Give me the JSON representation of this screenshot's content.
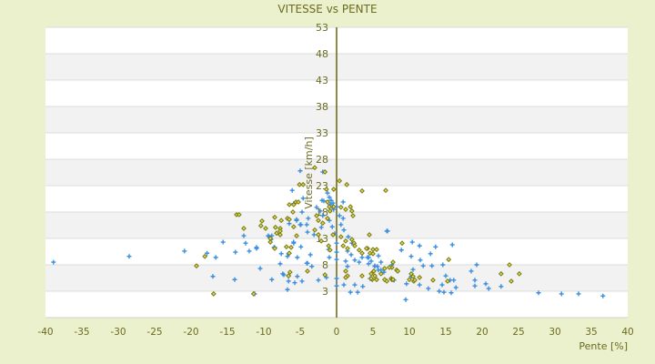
{
  "chart_data": {
    "type": "scatter",
    "title": "VITESSE vs PENTE",
    "xlabel": "Pente [%]",
    "ylabel": "Vitesse [km/h]",
    "xlim": [
      -40,
      40
    ],
    "ylim": [
      -2,
      53
    ],
    "xticks": [
      -40,
      -35,
      -30,
      -25,
      -20,
      -15,
      -10,
      -5,
      0,
      5,
      10,
      15,
      20,
      25,
      30,
      35,
      40
    ],
    "yticks": [
      3,
      8,
      13,
      18,
      23,
      28,
      33,
      38,
      43,
      48,
      53
    ],
    "grid": true,
    "colors": {
      "series_blue": "#3a8ee0",
      "series_olive": "#7a7a10",
      "zero_line": "#66660a",
      "band": "#f2f2f2"
    },
    "series": [
      {
        "name": "series-blue",
        "marker": "plus",
        "points": [
          [
            -38.9,
            8.5
          ],
          [
            -28.5,
            9.6
          ],
          [
            -20.9,
            10.6
          ],
          [
            -17.8,
            10.2
          ],
          [
            -16.6,
            9.4
          ],
          [
            -15.6,
            12.3
          ],
          [
            -17,
            5.8
          ],
          [
            -16.9,
            2.5
          ],
          [
            -14,
            5.2
          ],
          [
            -13.9,
            10.4
          ],
          [
            -12.75,
            13.5
          ],
          [
            -12.5,
            12.1
          ],
          [
            -12,
            10.6
          ],
          [
            -11,
            11.1
          ],
          [
            -11.4,
            2.5
          ],
          [
            -10.5,
            7.3
          ],
          [
            -8.9,
            5.2
          ],
          [
            -9.4,
            13.5
          ],
          [
            -8.9,
            13.5
          ],
          [
            -8.6,
            11.3
          ],
          [
            -7.6,
            10.1
          ],
          [
            -7.75,
            8.2
          ],
          [
            -7.4,
            6.3
          ],
          [
            -6.75,
            9.6
          ],
          [
            -6.6,
            5.9
          ],
          [
            -6.6,
            4.9
          ],
          [
            -5.75,
            4.6
          ],
          [
            -6.75,
            3.3
          ],
          [
            -5.4,
            5.8
          ],
          [
            -4.75,
            4.9
          ],
          [
            -4.9,
            11.4
          ],
          [
            -4.1,
            8.3
          ],
          [
            -5.9,
            12.3
          ],
          [
            -6.5,
            15.8
          ],
          [
            -5.5,
            16.6
          ],
          [
            -5,
            15.6
          ],
          [
            -4.1,
            15.6
          ],
          [
            -4.75,
            18
          ],
          [
            -5.9,
            19.6
          ],
          [
            6.9,
            14.4
          ],
          [
            10.4,
            12.3
          ],
          [
            11.4,
            11.6
          ],
          [
            13.6,
            11.4
          ],
          [
            15.9,
            11.8
          ],
          [
            8.9,
            10.8
          ],
          [
            12.9,
            10.1
          ],
          [
            10.25,
            9.6
          ],
          [
            11.5,
            8.9
          ],
          [
            11.9,
            7.8
          ],
          [
            13.1,
            7.8
          ],
          [
            14.6,
            8
          ],
          [
            19.25,
            8
          ],
          [
            18.5,
            6.8
          ],
          [
            10.5,
            7.1
          ],
          [
            15,
            5.9
          ],
          [
            10.25,
            5.8
          ],
          [
            9.6,
            4.4
          ],
          [
            11.4,
            4.2
          ],
          [
            14.5,
            4.2
          ],
          [
            15.6,
            5.1
          ],
          [
            16.1,
            5.1
          ],
          [
            16.4,
            3.7
          ],
          [
            12.6,
            3.5
          ],
          [
            14.1,
            3
          ],
          [
            14.75,
            2.8
          ],
          [
            15.75,
            2.7
          ],
          [
            19,
            5.1
          ],
          [
            19,
            4
          ],
          [
            20.5,
            4.4
          ],
          [
            20.9,
            3.5
          ],
          [
            22.6,
            3.9
          ],
          [
            9.5,
            1.4
          ],
          [
            27.75,
            2.7
          ],
          [
            30.9,
            2.5
          ],
          [
            33.25,
            2.5
          ],
          [
            36.6,
            2.1
          ],
          [
            4.4,
            8.2
          ],
          [
            5.25,
            7.7
          ],
          [
            5.6,
            7.7
          ],
          [
            5.75,
            9.7
          ],
          [
            6.1,
            8.5
          ],
          [
            5.75,
            7
          ],
          [
            6.1,
            7
          ],
          [
            6.5,
            6.6
          ],
          [
            4.6,
            5.4
          ],
          [
            7.9,
            5.1
          ],
          [
            7.6,
            8
          ],
          [
            4.4,
            9.4
          ],
          [
            -5,
            25.8
          ],
          [
            -1.9,
            25.6
          ],
          [
            -6.1,
            22.1
          ],
          [
            -4.6,
            20.6
          ],
          [
            -1.25,
            21.6
          ],
          [
            -1,
            20.8
          ],
          [
            -0.75,
            20.2
          ],
          [
            -0.5,
            19.7
          ],
          [
            -0.9,
            19.4
          ],
          [
            -0.6,
            18.9
          ],
          [
            -0.4,
            18.5
          ],
          [
            0,
            19
          ],
          [
            -2,
            20.2
          ],
          [
            -1.75,
            20.1
          ],
          [
            0.9,
            19.9
          ],
          [
            -2.75,
            18.9
          ],
          [
            -2.25,
            18.2
          ],
          [
            -1.9,
            17.3
          ],
          [
            0.4,
            17.3
          ],
          [
            0.9,
            16.8
          ],
          [
            0.6,
            15.6
          ],
          [
            -1,
            16.4
          ],
          [
            -0.6,
            15.2
          ],
          [
            -0.25,
            13.9
          ],
          [
            -3.9,
            16.8
          ],
          [
            -4.9,
            15.6
          ],
          [
            -5.5,
            16.4
          ],
          [
            -4,
            14.2
          ],
          [
            -3.1,
            13.7
          ],
          [
            -2.1,
            15.1
          ],
          [
            1,
            14.6
          ],
          [
            1.6,
            13.3
          ],
          [
            2.1,
            12.1
          ],
          [
            -9.25,
            13.3
          ],
          [
            -9,
            12.8
          ],
          [
            -8.5,
            11.3
          ],
          [
            -5.9,
            12.1
          ],
          [
            0,
            12.1
          ],
          [
            0,
            10.4
          ],
          [
            0,
            9
          ],
          [
            -1.1,
            10.9
          ],
          [
            -1,
            9.4
          ],
          [
            1.5,
            10.6
          ],
          [
            2,
            9.9
          ],
          [
            1.25,
            8.7
          ],
          [
            1.5,
            7.7
          ],
          [
            2.5,
            8.9
          ],
          [
            3.1,
            8.5
          ],
          [
            3.5,
            9.4
          ],
          [
            4.25,
            9.4
          ],
          [
            4.75,
            8.7
          ],
          [
            5.25,
            7.8
          ],
          [
            7,
            14.4
          ],
          [
            -11,
            11.3
          ],
          [
            -6.6,
            10.1
          ],
          [
            -5.4,
            9.4
          ],
          [
            -3.6,
            9.9
          ],
          [
            -4,
            8.3
          ],
          [
            -3.4,
            7.7
          ],
          [
            -2.5,
            5.1
          ],
          [
            -1.4,
            5.6
          ],
          [
            0,
            5.4
          ],
          [
            0,
            4
          ],
          [
            1,
            4.2
          ],
          [
            1.9,
            2.8
          ],
          [
            2.9,
            2.8
          ],
          [
            2.5,
            4.2
          ],
          [
            3.6,
            3.9
          ],
          [
            -7.25,
            6.1
          ],
          [
            -11.25,
            2.5
          ]
        ]
      },
      {
        "name": "series-olive",
        "marker": "diamond",
        "points": [
          [
            -19.25,
            7.8
          ],
          [
            -18.1,
            9.6
          ],
          [
            -13.75,
            17.5
          ],
          [
            -13.4,
            17.5
          ],
          [
            -12.75,
            14.9
          ],
          [
            -10.25,
            16.3
          ],
          [
            -10.4,
            15.4
          ],
          [
            -9.75,
            14.9
          ],
          [
            -8.5,
            17
          ],
          [
            -7.6,
            16.4
          ],
          [
            -8.4,
            15.1
          ],
          [
            -7.75,
            14.9
          ],
          [
            -7.75,
            14.4
          ],
          [
            -8.25,
            14
          ],
          [
            -7.75,
            13.7
          ],
          [
            -9.1,
            13
          ],
          [
            -9.1,
            12.3
          ],
          [
            -8.5,
            11.1
          ],
          [
            -6.9,
            11.4
          ],
          [
            -6.25,
            11.3
          ],
          [
            -6.5,
            10.2
          ],
          [
            -6.75,
            16.8
          ],
          [
            -6.5,
            16.6
          ],
          [
            -5.9,
            15.2
          ],
          [
            -5.5,
            13.5
          ],
          [
            -6.5,
            19.4
          ],
          [
            -6,
            18
          ],
          [
            -6.4,
            6.6
          ],
          [
            -4,
            6.8
          ],
          [
            -5.6,
            19.9
          ],
          [
            -5.25,
            19.9
          ],
          [
            -16.9,
            2.5
          ],
          [
            -11.4,
            2.5
          ],
          [
            4.5,
            13.7
          ],
          [
            9,
            12.1
          ],
          [
            4.25,
            11.1
          ],
          [
            5,
            10.9
          ],
          [
            5.5,
            10.9
          ],
          [
            4.6,
            10.2
          ],
          [
            5,
            10.1
          ],
          [
            15.4,
            9
          ],
          [
            23.75,
            8
          ],
          [
            7.75,
            8.5
          ],
          [
            7.6,
            7.5
          ],
          [
            8.25,
            7
          ],
          [
            6.6,
            7.3
          ],
          [
            4.75,
            6.3
          ],
          [
            6.1,
            6.3
          ],
          [
            5.1,
            6.8
          ],
          [
            10.25,
            6.3
          ],
          [
            10.5,
            5.8
          ],
          [
            11.4,
            5.6
          ],
          [
            22.6,
            6.3
          ],
          [
            25.1,
            6.3
          ],
          [
            24,
            4.9
          ],
          [
            13.25,
            5.1
          ],
          [
            15.25,
            4.9
          ],
          [
            6.6,
            5.2
          ],
          [
            6.9,
            4.9
          ],
          [
            7.5,
            5.4
          ],
          [
            7.6,
            5.2
          ],
          [
            4.9,
            5.2
          ],
          [
            5.5,
            5.2
          ],
          [
            10,
            5.2
          ],
          [
            10.6,
            4.9
          ],
          [
            10.75,
            5.1
          ],
          [
            -3,
            26.4
          ],
          [
            -1.6,
            25.6
          ],
          [
            0.4,
            23.9
          ],
          [
            1.4,
            23.2
          ],
          [
            -5.1,
            23.2
          ],
          [
            -4.6,
            23.2
          ],
          [
            -1.4,
            22.3
          ],
          [
            -0.4,
            22.3
          ],
          [
            3.5,
            22
          ],
          [
            6.75,
            22.1
          ],
          [
            -5.9,
            19.4
          ],
          [
            -1.25,
            19.9
          ],
          [
            -1,
            19
          ],
          [
            -0.4,
            19
          ],
          [
            -0.9,
            18.2
          ],
          [
            0.6,
            18.9
          ],
          [
            1.25,
            18.5
          ],
          [
            1.9,
            19
          ],
          [
            2.1,
            18.2
          ],
          [
            2.25,
            17.3
          ],
          [
            -2.75,
            17.3
          ],
          [
            -2.5,
            16.4
          ],
          [
            -1.9,
            15.9
          ],
          [
            -1.25,
            16.8
          ],
          [
            -3,
            14.6
          ],
          [
            -2.5,
            13.7
          ],
          [
            -2.1,
            12.5
          ],
          [
            -0.5,
            13.7
          ],
          [
            0.6,
            13.3
          ],
          [
            1.25,
            12.5
          ],
          [
            2.1,
            12.8
          ],
          [
            2.4,
            12.1
          ],
          [
            0.9,
            11.6
          ],
          [
            1.5,
            11.1
          ],
          [
            2.5,
            11.6
          ],
          [
            3.1,
            10.8
          ],
          [
            3.5,
            10.2
          ],
          [
            4.1,
            11.1
          ],
          [
            -1.1,
            11.6
          ],
          [
            -0.9,
            10.8
          ],
          [
            8.4,
            6.8
          ],
          [
            7.25,
            7.5
          ],
          [
            1.25,
            6.8
          ],
          [
            1.5,
            5.9
          ],
          [
            1.25,
            5.6
          ],
          [
            5.25,
            5.9
          ],
          [
            4.75,
            5.4
          ],
          [
            3.5,
            5.9
          ],
          [
            7.75,
            5.2
          ],
          [
            -6.6,
            5.9
          ],
          [
            -1.6,
            6.1
          ]
        ]
      }
    ]
  }
}
